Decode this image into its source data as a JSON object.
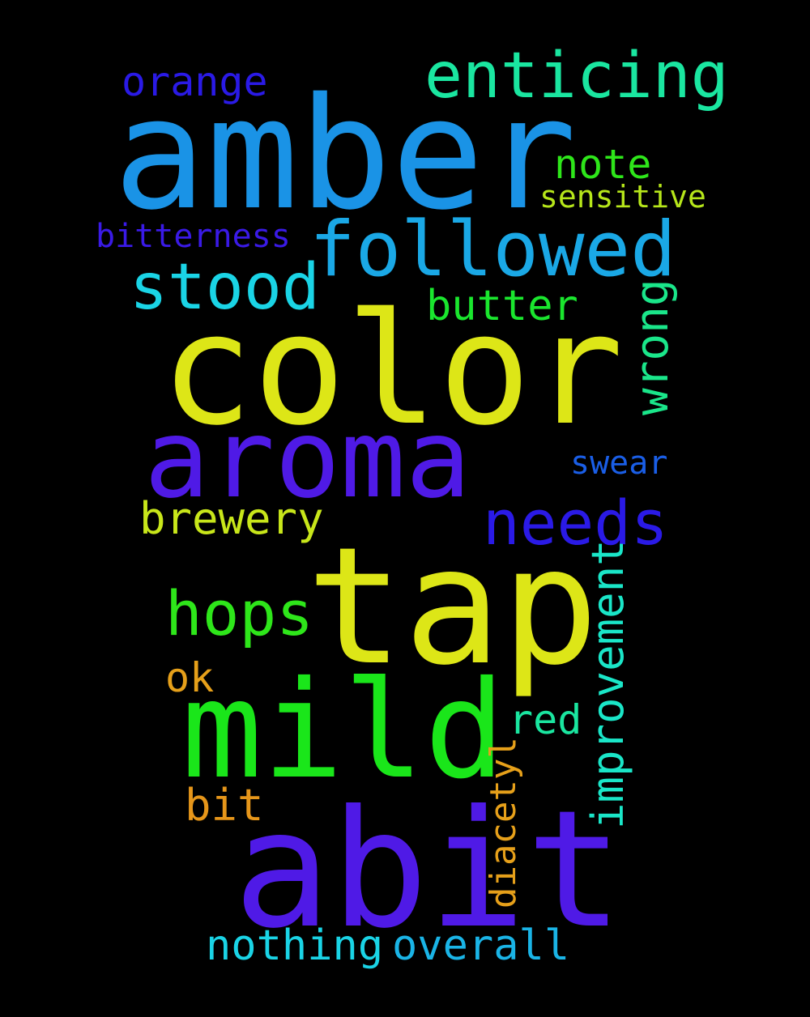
{
  "words": {
    "amber": {
      "text": "amber",
      "color": "#1a93e6"
    },
    "color": {
      "text": "color",
      "color": "#dde617"
    },
    "tap": {
      "text": "tap",
      "color": "#dde617"
    },
    "abit": {
      "text": "abit",
      "color": "#4f1ae6"
    },
    "mild": {
      "text": "mild",
      "color": "#1ae61a"
    },
    "aroma": {
      "text": "aroma",
      "color": "#4f1ae6"
    },
    "followed": {
      "text": "followed",
      "color": "#1aa8e6"
    },
    "enticing": {
      "text": "enticing",
      "color": "#1ae6a0"
    },
    "orange": {
      "text": "orange",
      "color": "#2a1ae6"
    },
    "note": {
      "text": "note",
      "color": "#2ee61a"
    },
    "sensitive": {
      "text": "sensitive",
      "color": "#b6e61a"
    },
    "bitterness": {
      "text": "bitterness",
      "color": "#3a1ae6"
    },
    "stood": {
      "text": "stood",
      "color": "#1ad4e6"
    },
    "butter": {
      "text": "butter",
      "color": "#1ae62e"
    },
    "wrong": {
      "text": "wrong",
      "color": "#1ae68a"
    },
    "swear": {
      "text": "swear",
      "color": "#1a5ee6"
    },
    "needs": {
      "text": "needs",
      "color": "#2a1ae6"
    },
    "brewery": {
      "text": "brewery",
      "color": "#c8e61a"
    },
    "hops": {
      "text": "hops",
      "color": "#2ee61a"
    },
    "improvement": {
      "text": "improvement",
      "color": "#1ae6c8"
    },
    "ok": {
      "text": "ok",
      "color": "#e6a01a"
    },
    "red": {
      "text": "red",
      "color": "#1ae6a0"
    },
    "diacetyl": {
      "text": "diacetyl",
      "color": "#e6a01a"
    },
    "bit": {
      "text": "bit",
      "color": "#e6961a"
    },
    "nothing": {
      "text": "nothing",
      "color": "#1ad4e6"
    },
    "overall": {
      "text": "overall",
      "color": "#1ab4e6"
    }
  }
}
